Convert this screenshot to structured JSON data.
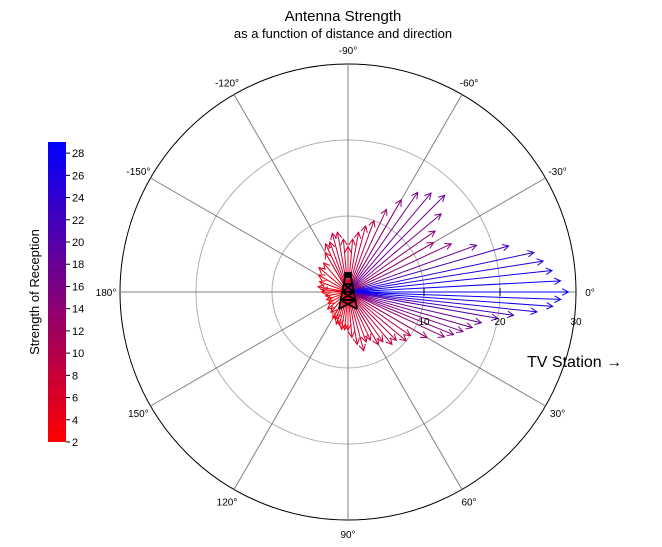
{
  "chart_data": {
    "type": "polar-vector",
    "title": "Antenna Strength",
    "subtitle": "as a function of distance and direction",
    "angle_unit": "degrees",
    "angle_direction": "clockwise from 0° at right",
    "angle_ticks": [
      0,
      30,
      60,
      90,
      120,
      150,
      180,
      -150,
      -120,
      -90,
      -60,
      -30
    ],
    "angle_tick_labels": [
      "0°",
      "30°",
      "60°",
      "90°",
      "120°",
      "150°",
      "180°",
      "-150°",
      "-120°",
      "-90°",
      "-60°",
      "-30°"
    ],
    "radial_ticks": [
      10,
      20,
      30
    ],
    "radial_tick_labels": [
      "10",
      "20",
      "30"
    ],
    "radial_range": [
      0,
      30
    ],
    "grid_circles": [
      10,
      20
    ],
    "colorbar": {
      "label": "Strength of Reception",
      "range": [
        2,
        29
      ],
      "ticks": [
        2,
        4,
        6,
        8,
        10,
        12,
        14,
        16,
        18,
        20,
        22,
        24,
        26,
        28
      ],
      "tick_labels": [
        "2",
        "4",
        "6",
        "8",
        "10",
        "12",
        "14",
        "16",
        "18",
        "20",
        "22",
        "24",
        "26",
        "28"
      ],
      "color_low": "#ff0000",
      "color_high": "#0000ff"
    },
    "source_marker": "transmission-tower",
    "annotation": "TV Station →",
    "series": [
      {
        "name": "reception vectors",
        "angle_deg": [
          -175,
          -170,
          -160,
          -150,
          -140,
          -130,
          -120,
          -115,
          -110,
          -105,
          -100,
          -95,
          -90,
          -85,
          -80,
          -75,
          -70,
          -65,
          -60,
          -55,
          -50,
          -45,
          -40,
          -35,
          -30,
          -25,
          -20,
          -16,
          -12,
          -9,
          -6,
          -3,
          0,
          2,
          4,
          6,
          8,
          10,
          13,
          16,
          19,
          22,
          25,
          30,
          35,
          40,
          45,
          50,
          55,
          60,
          65,
          70,
          75,
          80,
          85,
          90,
          95,
          100,
          105,
          110,
          115,
          120,
          130,
          140,
          150,
          160,
          170,
          180
        ],
        "magnitude": [
          3.5,
          4,
          4,
          4.5,
          5,
          5,
          6,
          7,
          7,
          8,
          8,
          7,
          6,
          7,
          8,
          9,
          10,
          12,
          14,
          16,
          17,
          18,
          16,
          14,
          13,
          15,
          18,
          22,
          25,
          26,
          27,
          28,
          29,
          28,
          27,
          25,
          22,
          20,
          18,
          17,
          16,
          15,
          14,
          12,
          10,
          10,
          9,
          9,
          8,
          8,
          7,
          7,
          8,
          7,
          6,
          5,
          5,
          5,
          4.5,
          4.5,
          4,
          4,
          3.5,
          3.5,
          3,
          3,
          3,
          3.5
        ]
      }
    ]
  }
}
